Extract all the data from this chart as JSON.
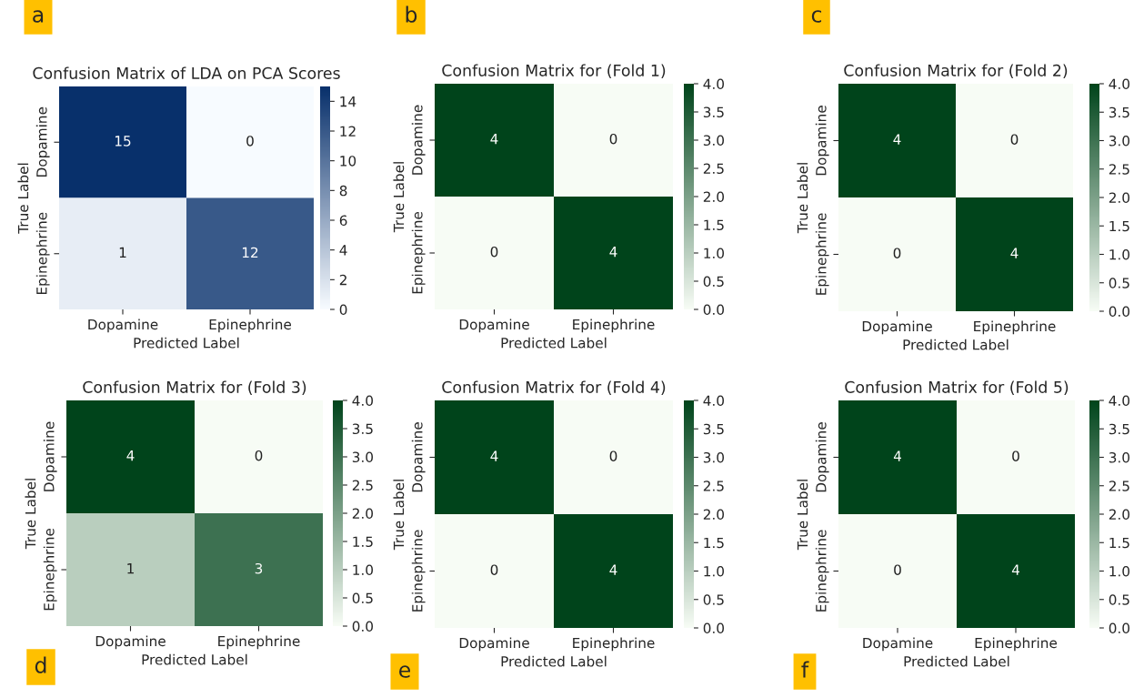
{
  "chart_data": [
    {
      "type": "heatmap",
      "title": "Confusion Matrix of LDA on PCA Scores",
      "xlabel": "Predicted Label",
      "ylabel": "True Label",
      "categories": [
        "Dopamine",
        "Epinephrine"
      ],
      "y_categories": [
        "Dopamine",
        "Epinephrine"
      ],
      "cells": [
        [
          15,
          0
        ],
        [
          1,
          12
        ]
      ],
      "data_labels": true,
      "colors": [
        "#f7fbff",
        "#08306b"
      ],
      "clim": [
        0,
        15
      ],
      "cticks": [
        0,
        2,
        4,
        6,
        8,
        10,
        12,
        14
      ],
      "annotations": [
        "a"
      ]
    },
    {
      "type": "heatmap",
      "title": "Confusion Matrix for (Fold 1)",
      "xlabel": "Predicted Label",
      "ylabel": "True Label",
      "categories": [
        "Dopamine",
        "Epinephrine"
      ],
      "y_categories": [
        "Dopamine",
        "Epinephrine"
      ],
      "cells": [
        [
          4,
          0
        ],
        [
          0,
          4
        ]
      ],
      "data_labels": true,
      "colors": [
        "#f7fcf5",
        "#00441b"
      ],
      "clim": [
        0,
        4
      ],
      "cticks": [
        {
          "value": 0,
          "label": "0.0"
        },
        {
          "value": 0.5,
          "label": "0.5"
        },
        {
          "value": 1,
          "label": "1.0"
        },
        {
          "value": 1.5,
          "label": "1.5"
        },
        {
          "value": 2,
          "label": "2.0"
        },
        {
          "value": 2.5,
          "label": "2.5"
        },
        {
          "value": 3,
          "label": "3.0"
        },
        {
          "value": 3.5,
          "label": "3.5"
        },
        {
          "value": 4,
          "label": "4.0"
        }
      ],
      "annotations": [
        "b"
      ]
    },
    {
      "type": "heatmap",
      "title": "Confusion Matrix for (Fold 2)",
      "xlabel": "Predicted Label",
      "ylabel": "True Label",
      "categories": [
        "Dopamine",
        "Epinephrine"
      ],
      "y_categories": [
        "Dopamine",
        "Epinephrine"
      ],
      "cells": [
        [
          4,
          0
        ],
        [
          0,
          4
        ]
      ],
      "data_labels": true,
      "colors": [
        "#f7fcf5",
        "#00441b"
      ],
      "clim": [
        0,
        4
      ],
      "cticks": [
        {
          "value": 0,
          "label": "0.0"
        },
        {
          "value": 0.5,
          "label": "0.5"
        },
        {
          "value": 1,
          "label": "1.0"
        },
        {
          "value": 1.5,
          "label": "1.5"
        },
        {
          "value": 2,
          "label": "2.0"
        },
        {
          "value": 2.5,
          "label": "2.5"
        },
        {
          "value": 3,
          "label": "3.0"
        },
        {
          "value": 3.5,
          "label": "3.5"
        },
        {
          "value": 4,
          "label": "4.0"
        }
      ],
      "annotations": [
        "c"
      ]
    },
    {
      "type": "heatmap",
      "title": "Confusion Matrix for (Fold 3)",
      "xlabel": "Predicted Label",
      "ylabel": "True Label",
      "categories": [
        "Dopamine",
        "Epinephrine"
      ],
      "y_categories": [
        "Dopamine",
        "Epinephrine"
      ],
      "cells": [
        [
          4,
          0
        ],
        [
          1,
          3
        ]
      ],
      "data_labels": true,
      "colors": [
        "#f7fcf5",
        "#00441b"
      ],
      "clim": [
        0,
        4
      ],
      "cticks": [
        {
          "value": 0,
          "label": "0.0"
        },
        {
          "value": 0.5,
          "label": "0.5"
        },
        {
          "value": 1,
          "label": "1.0"
        },
        {
          "value": 1.5,
          "label": "1.5"
        },
        {
          "value": 2,
          "label": "2.0"
        },
        {
          "value": 2.5,
          "label": "2.5"
        },
        {
          "value": 3,
          "label": "3.0"
        },
        {
          "value": 3.5,
          "label": "3.5"
        },
        {
          "value": 4,
          "label": "4.0"
        }
      ],
      "annotations": [
        "d"
      ]
    },
    {
      "type": "heatmap",
      "title": "Confusion Matrix for (Fold 4)",
      "xlabel": "Predicted Label",
      "ylabel": "True Label",
      "categories": [
        "Dopamine",
        "Epinephrine"
      ],
      "y_categories": [
        "Dopamine",
        "Epinephrine"
      ],
      "cells": [
        [
          4,
          0
        ],
        [
          0,
          4
        ]
      ],
      "data_labels": true,
      "colors": [
        "#f7fcf5",
        "#00441b"
      ],
      "clim": [
        0,
        4
      ],
      "cticks": [
        {
          "value": 0,
          "label": "0.0"
        },
        {
          "value": 0.5,
          "label": "0.5"
        },
        {
          "value": 1,
          "label": "1.0"
        },
        {
          "value": 1.5,
          "label": "1.5"
        },
        {
          "value": 2,
          "label": "2.0"
        },
        {
          "value": 2.5,
          "label": "2.5"
        },
        {
          "value": 3,
          "label": "3.0"
        },
        {
          "value": 3.5,
          "label": "3.5"
        },
        {
          "value": 4,
          "label": "4.0"
        }
      ],
      "annotations": [
        "e"
      ]
    },
    {
      "type": "heatmap",
      "title": "Confusion Matrix for (Fold 5)",
      "xlabel": "Predicted Label",
      "ylabel": "True Label",
      "categories": [
        "Dopamine",
        "Epinephrine"
      ],
      "y_categories": [
        "Dopamine",
        "Epinephrine"
      ],
      "cells": [
        [
          4,
          0
        ],
        [
          0,
          4
        ]
      ],
      "data_labels": true,
      "colors": [
        "#f7fcf5",
        "#00441b"
      ],
      "clim": [
        0,
        4
      ],
      "cticks": [
        {
          "value": 0,
          "label": "0.0"
        },
        {
          "value": 0.5,
          "label": "0.5"
        },
        {
          "value": 1,
          "label": "1.0"
        },
        {
          "value": 1.5,
          "label": "1.5"
        },
        {
          "value": 2,
          "label": "2.0"
        },
        {
          "value": 2.5,
          "label": "2.5"
        },
        {
          "value": 3,
          "label": "3.0"
        },
        {
          "value": 3.5,
          "label": "3.5"
        },
        {
          "value": 4,
          "label": "4.0"
        }
      ],
      "annotations": [
        "f"
      ]
    }
  ]
}
